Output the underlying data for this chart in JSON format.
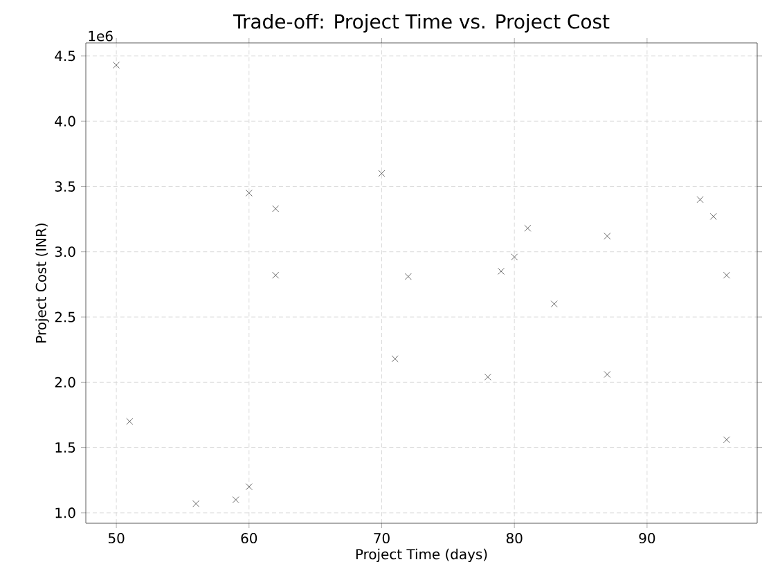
{
  "chart_data": {
    "type": "scatter",
    "title": "Trade-off: Project Time vs. Project Cost",
    "xlabel": "Project Time (days)",
    "ylabel": "Project Cost (INR)",
    "annotations": [
      "1e6"
    ],
    "x": [
      50,
      51,
      56,
      59,
      60,
      60,
      62,
      62,
      70,
      71,
      72,
      78,
      79,
      80,
      81,
      83,
      87,
      87,
      94,
      95,
      96,
      96
    ],
    "series": [
      {
        "color": "#444444",
        "values": [
          4.43,
          1.7,
          1.07,
          1.1,
          1.2,
          3.45,
          3.33,
          2.82,
          3.6,
          2.18,
          2.81,
          2.04,
          2.85,
          2.96,
          3.18,
          2.6,
          3.12,
          2.06,
          3.4,
          3.27,
          2.82,
          1.56
        ]
      }
    ],
    "xlim": [
      47.7,
      98.3
    ],
    "ylim": [
      0.92,
      4.6
    ],
    "xticks": [
      50,
      60,
      70,
      80,
      90
    ],
    "yticks": [
      {
        "value": 1.0,
        "label": "1.0"
      },
      {
        "value": 1.5,
        "label": "1.5"
      },
      {
        "value": 2.0,
        "label": "2.0"
      },
      {
        "value": 2.5,
        "label": "2.5"
      },
      {
        "value": 3.0,
        "label": "3.0"
      },
      {
        "value": 3.5,
        "label": "3.5"
      },
      {
        "value": 4.0,
        "label": "4.0"
      },
      {
        "value": 4.5,
        "label": "4.5"
      }
    ],
    "grid": true,
    "marker": "cross"
  }
}
